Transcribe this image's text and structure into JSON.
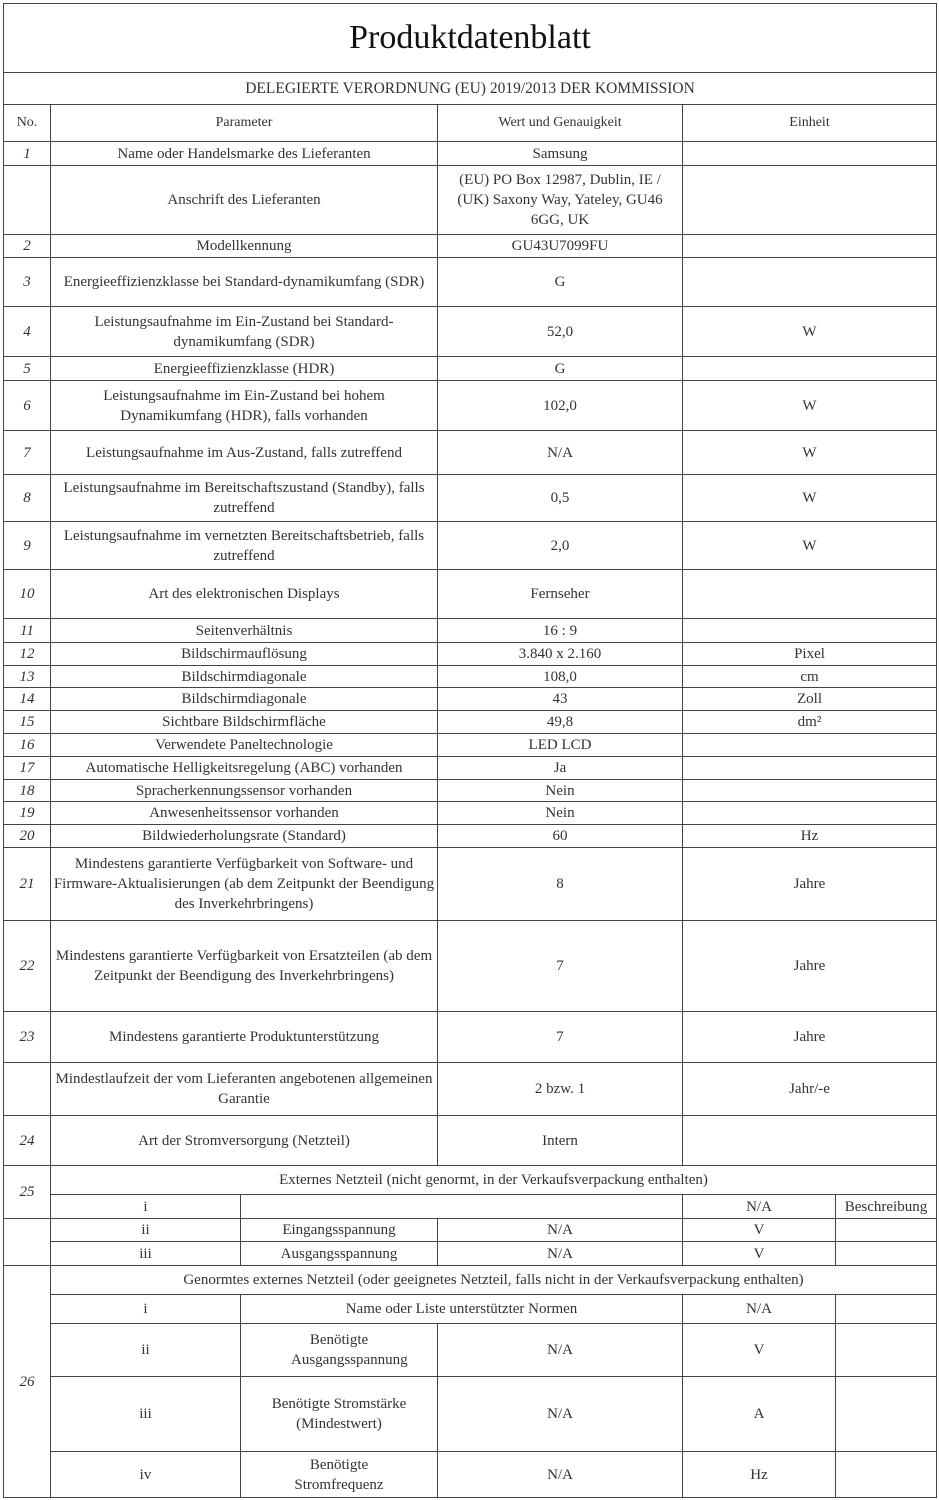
{
  "title": "Produktdatenblatt",
  "subtitle": "DELEGIERTE VERORDNUNG (EU) 2019/2013 DER KOMMISSION",
  "headers": {
    "no": "No.",
    "parameter": "Parameter",
    "value": "Wert und Genauigkeit",
    "unit": "Einheit"
  },
  "rows": [
    {
      "no": "1",
      "param": "Name oder Handelsmarke des Lieferanten",
      "value": "Samsung",
      "unit": ""
    },
    {
      "no": "",
      "param": "Anschrift des Lieferanten",
      "value": "(EU) PO Box 12987, Dublin, IE / (UK) Saxony Way, Yateley, GU46 6GG, UK",
      "unit": ""
    },
    {
      "no": "2",
      "param": "Modellkennung",
      "value": "GU43U7099FU",
      "unit": ""
    },
    {
      "no": "3",
      "param": "Energieeffizienzklasse bei Standard-dynamikumfang (SDR)",
      "value": "G",
      "unit": ""
    },
    {
      "no": "4",
      "param": "Leistungsaufnahme im Ein-Zustand bei Standard-dynamikumfang (SDR)",
      "value": "52,0",
      "unit": "W"
    },
    {
      "no": "5",
      "param": "Energieeffizienzklasse (HDR)",
      "value": "G",
      "unit": ""
    },
    {
      "no": "6",
      "param": "Leistungsaufnahme im Ein-Zustand bei hohem Dynamikumfang (HDR), falls vorhanden",
      "value": "102,0",
      "unit": "W"
    },
    {
      "no": "7",
      "param": "Leistungsaufnahme im Aus-Zustand, falls zutreffend",
      "value": "N/A",
      "unit": "W"
    },
    {
      "no": "8",
      "param": "Leistungsaufnahme im Bereitschaftszustand (Standby), falls zutreffend",
      "value": "0,5",
      "unit": "W"
    },
    {
      "no": "9",
      "param": "Leistungsaufnahme im vernetzten Bereitschaftsbetrieb, falls zutreffend",
      "value": "2,0",
      "unit": "W"
    },
    {
      "no": "10",
      "param": "Art des elektronischen Displays",
      "value": "Fernseher",
      "unit": ""
    },
    {
      "no": "11",
      "param": "Seitenverhältnis",
      "value": "16 : 9",
      "unit": ""
    },
    {
      "no": "12",
      "param": "Bildschirmauflösung",
      "value": "3.840 x 2.160",
      "unit": "Pixel"
    },
    {
      "no": "13",
      "param": "Bildschirmdiagonale",
      "value": "108,0",
      "unit": "cm"
    },
    {
      "no": "14",
      "param": "Bildschirmdiagonale",
      "value": "43",
      "unit": "Zoll"
    },
    {
      "no": "15",
      "param": "Sichtbare Bildschirmfläche",
      "value": "49,8",
      "unit": "dm²"
    },
    {
      "no": "16",
      "param": "Verwendete Paneltechnologie",
      "value": "LED LCD",
      "unit": ""
    },
    {
      "no": "17",
      "param": "Automatische Helligkeitsregelung (ABC) vorhanden",
      "value": "Ja",
      "unit": ""
    },
    {
      "no": "18",
      "param": "Spracherkennungssensor vorhanden",
      "value": "Nein",
      "unit": ""
    },
    {
      "no": "19",
      "param": "Anwesenheitssensor vorhanden",
      "value": "Nein",
      "unit": ""
    },
    {
      "no": "20",
      "param": "Bildwiederholungsrate (Standard)",
      "value": "60",
      "unit": "Hz"
    },
    {
      "no": "21",
      "param": "Mindestens garantierte Verfügbarkeit von Software- und Firmware-Aktualisierungen (ab dem Zeitpunkt der Beendigung des Inverkehrbringens)",
      "value": "8",
      "unit": "Jahre"
    },
    {
      "no": "22",
      "param": "Mindestens garantierte Verfügbarkeit von Ersatzteilen (ab dem Zeitpunkt der Beendigung des Inverkehrbringens)",
      "value": "7",
      "unit": "Jahre"
    },
    {
      "no": "23",
      "param": "Mindestens garantierte Produktunterstützung",
      "value": "7",
      "unit": "Jahre"
    },
    {
      "no": "",
      "param": "Mindestlaufzeit der vom Lieferanten angebotenen allgemeinen Garantie",
      "value": "2 bzw. 1",
      "unit": "Jahr/-e"
    },
    {
      "no": "24",
      "param": "Art der Stromversorgung (Netzteil)",
      "value": "Intern",
      "unit": ""
    }
  ],
  "section25": {
    "no": "25",
    "heading": "Externes Netzteil (nicht genormt, in der Verkaufsverpackung enthalten)",
    "i": {
      "label": "i",
      "value": "N/A",
      "extra": "Beschreibung"
    },
    "ii": {
      "label": "ii",
      "param": "Eingangsspannung",
      "value": "N/A",
      "unit": "V"
    },
    "iii": {
      "label": "iii",
      "param": "Ausgangsspannung",
      "value": "N/A",
      "unit": "V"
    }
  },
  "section26": {
    "no": "26",
    "heading": "Genormtes externes Netzteil (oder geeignetes Netzteil, falls nicht in der Verkaufsverpackung enthalten)",
    "i": {
      "label": "i",
      "param": "Name oder Liste unterstützter Normen",
      "value": "N/A"
    },
    "ii": {
      "label": "ii",
      "param": "Benötigte Ausgangsspannung",
      "value": "N/A",
      "unit": "V"
    },
    "iii": {
      "label": "iii",
      "param": "Benötigte Stromstärke (Mindestwert)",
      "value": "N/A",
      "unit": "A"
    },
    "iv": {
      "label": "iv",
      "param": "Benötigte Stromfrequenz",
      "value": "N/A",
      "unit": "Hz"
    }
  }
}
